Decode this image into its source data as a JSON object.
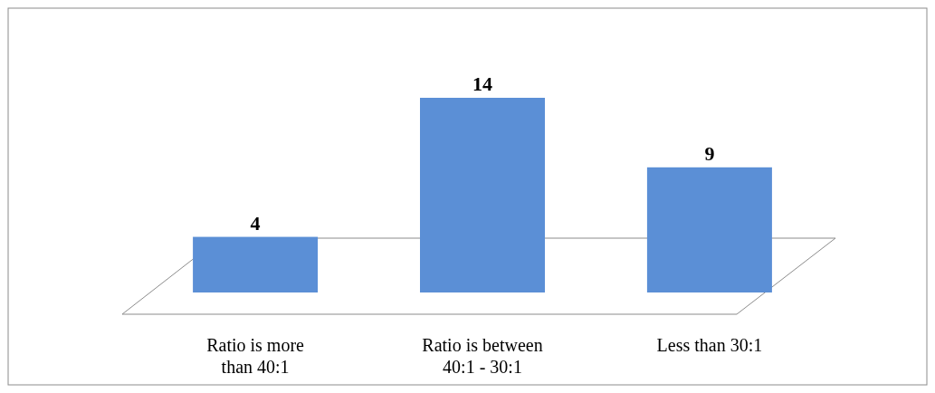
{
  "chart_data": {
    "type": "bar",
    "categories": [
      "Ratio is more than 40:1",
      "Ratio is between 40:1 - 30:1",
      "Less than 30:1"
    ],
    "values": [
      4,
      14,
      9
    ],
    "color": "#5b8fd6",
    "data_labels": true
  }
}
